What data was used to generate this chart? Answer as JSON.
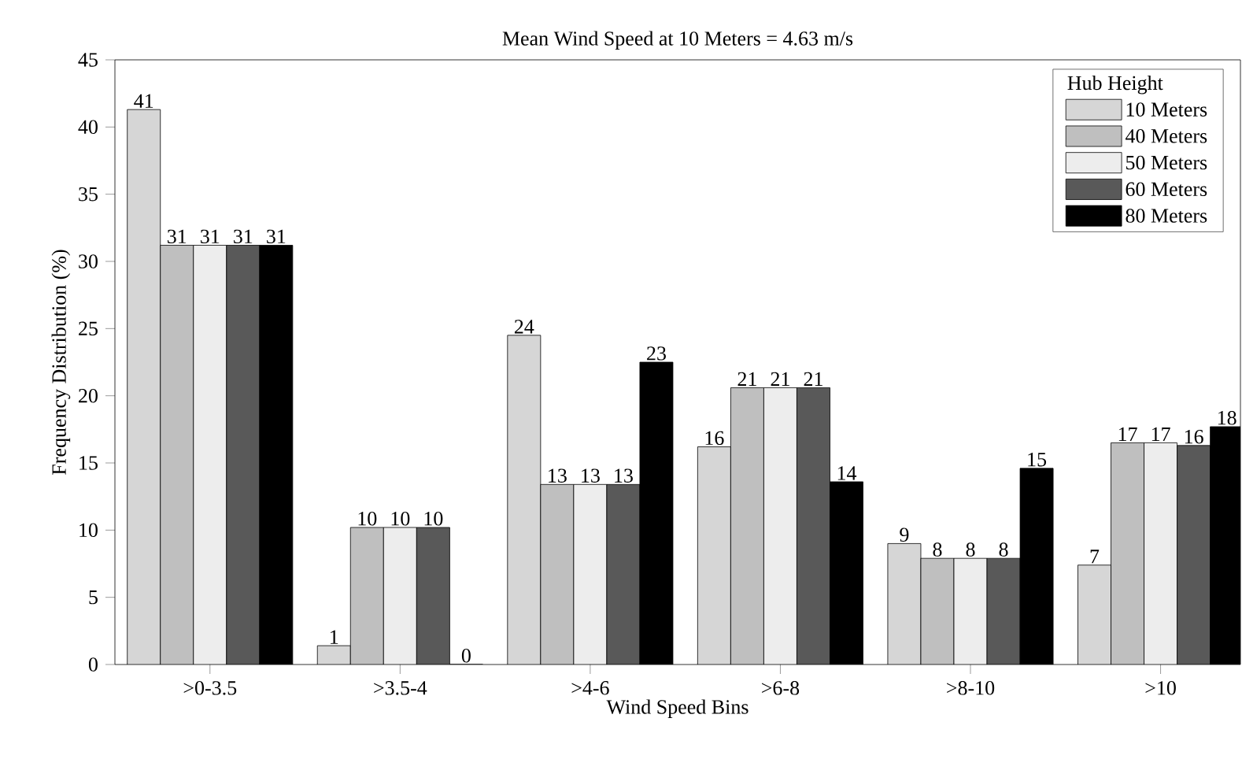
{
  "chart_data": {
    "type": "bar",
    "title": "Mean Wind Speed at 10 Meters = 4.63 m/s",
    "xlabel": "Wind Speed Bins",
    "ylabel": "Frequency Distribution (%)",
    "legend_title": "Hub Height",
    "categories": [
      ">0-3.5",
      ">3.5-4",
      ">4-6",
      ">6-8",
      ">8-10",
      ">10"
    ],
    "series": [
      {
        "name": "10 Meters",
        "color": "#d6d6d6",
        "values": [
          41.3,
          1.4,
          24.5,
          16.2,
          9.0,
          7.4
        ],
        "value_labels": [
          "41",
          "1",
          "24",
          "16",
          "9",
          "7"
        ]
      },
      {
        "name": "40 Meters",
        "color": "#bfbfbf",
        "values": [
          31.2,
          10.2,
          13.4,
          20.6,
          7.9,
          16.5
        ],
        "value_labels": [
          "31",
          "10",
          "13",
          "21",
          "8",
          "17"
        ]
      },
      {
        "name": "50 Meters",
        "color": "#ededed",
        "values": [
          31.2,
          10.2,
          13.4,
          20.6,
          7.9,
          16.5
        ],
        "value_labels": [
          "31",
          "10",
          "13",
          "21",
          "8",
          "17"
        ]
      },
      {
        "name": "60 Meters",
        "color": "#595959",
        "values": [
          31.2,
          10.2,
          13.4,
          20.6,
          7.9,
          16.3
        ],
        "value_labels": [
          "31",
          "10",
          "13",
          "21",
          "8",
          "16"
        ]
      },
      {
        "name": "80 Meters",
        "color": "#000000",
        "values": [
          31.2,
          0,
          22.5,
          13.6,
          14.6,
          17.7
        ],
        "value_labels": [
          "31",
          "0",
          "23",
          "14",
          "15",
          "18"
        ]
      }
    ],
    "ylim": [
      0,
      45
    ],
    "yticks": [
      0,
      5,
      10,
      15,
      20,
      25,
      30,
      35,
      40,
      45
    ],
    "grid": false,
    "legend": "top right"
  }
}
